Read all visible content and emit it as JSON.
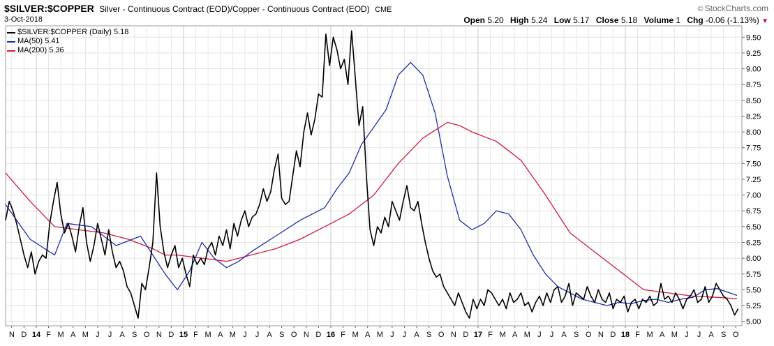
{
  "header": {
    "symbol": "$SILVER:$COPPER",
    "description": "Silver - Continuous Contract (EOD)/Copper - Continuous Contract (EOD)",
    "exchange": "CME",
    "brand": "StockCharts.com",
    "date": "3-Oct-2018",
    "open_label": "Open",
    "open": "5.20",
    "high_label": "High",
    "high": "5.24",
    "low_label": "Low",
    "low": "5.17",
    "close_label": "Close",
    "close": "5.18",
    "volume_label": "Volume",
    "volume": "1",
    "chg_label": "Chg",
    "chg": "-0.06 (-1.13%)"
  },
  "legend": [
    {
      "text": "$SILVER:$COPPER (Daily) 5.18",
      "color": "#000000"
    },
    {
      "text": "MA(50) 5.41",
      "color": "#1c2ea8"
    },
    {
      "text": "MA(200) 5.36",
      "color": "#d11a3c"
    }
  ],
  "chart_data": {
    "type": "line",
    "y_axis_position": "right",
    "ylim": [
      4.93,
      9.68
    ],
    "y_ticks": [
      "5.00",
      "5.25",
      "5.50",
      "5.75",
      "6.00",
      "6.25",
      "6.50",
      "6.75",
      "7.00",
      "7.25",
      "7.50",
      "7.75",
      "8.00",
      "8.25",
      "8.50",
      "8.75",
      "9.00",
      "9.25",
      "9.50"
    ],
    "x_ticks": [
      "N",
      "D",
      "14",
      "F",
      "M",
      "A",
      "M",
      "J",
      "J",
      "A",
      "S",
      "O",
      "N",
      "D",
      "15",
      "F",
      "M",
      "A",
      "M",
      "J",
      "J",
      "A",
      "S",
      "O",
      "N",
      "D",
      "16",
      "F",
      "M",
      "A",
      "M",
      "J",
      "J",
      "A",
      "S",
      "O",
      "N",
      "D",
      "17",
      "F",
      "M",
      "A",
      "M",
      "J",
      "J",
      "A",
      "S",
      "O",
      "N",
      "D",
      "18",
      "F",
      "M",
      "A",
      "M",
      "J",
      "J",
      "A",
      "S",
      "O"
    ],
    "year_ticks": [
      "14",
      "15",
      "16",
      "17",
      "18"
    ],
    "x_range_months": [
      0,
      60
    ],
    "series": [
      {
        "name": "$SILVER:$COPPER (Daily)",
        "color": "#000000",
        "x": [
          0.0,
          0.3,
          0.6,
          0.9,
          1.2,
          1.5,
          1.8,
          2.1,
          2.4,
          2.7,
          3.0,
          3.3,
          3.6,
          3.9,
          4.2,
          4.5,
          4.8,
          5.1,
          5.4,
          5.7,
          6.0,
          6.3,
          6.6,
          6.9,
          7.2,
          7.5,
          7.8,
          8.1,
          8.4,
          8.7,
          9.0,
          9.3,
          9.6,
          9.9,
          10.2,
          10.5,
          10.8,
          11.1,
          11.4,
          11.7,
          12.0,
          12.3,
          12.6,
          12.9,
          13.2,
          13.5,
          13.8,
          14.1,
          14.4,
          14.7,
          15.0,
          15.3,
          15.6,
          15.9,
          16.2,
          16.5,
          16.8,
          17.1,
          17.4,
          17.7,
          18.0,
          18.3,
          18.6,
          18.9,
          19.2,
          19.5,
          19.8,
          20.1,
          20.4,
          20.7,
          21.0,
          21.3,
          21.6,
          21.9,
          22.2,
          22.5,
          22.8,
          23.1,
          23.4,
          23.7,
          24.0,
          24.3,
          24.6,
          24.9,
          25.2,
          25.5,
          25.8,
          26.1,
          26.4,
          26.7,
          27.0,
          27.3,
          27.6,
          27.9,
          28.2,
          28.5,
          28.8,
          29.1,
          29.4,
          29.7,
          30.0,
          30.3,
          30.6,
          30.9,
          31.2,
          31.5,
          31.8,
          32.1,
          32.4,
          32.7,
          33.0,
          33.3,
          33.6,
          33.9,
          34.2,
          34.5,
          34.8,
          35.1,
          35.4,
          35.7,
          36.0,
          36.3,
          36.6,
          36.9,
          37.2,
          37.5,
          37.8,
          38.1,
          38.4,
          38.7,
          39.0,
          39.3,
          39.6,
          39.9,
          40.2,
          40.5,
          40.8,
          41.1,
          41.4,
          41.7,
          42.0,
          42.3,
          42.6,
          42.9,
          43.2,
          43.5,
          43.8,
          44.1,
          44.4,
          44.7,
          45.0,
          45.3,
          45.6,
          45.9,
          46.2,
          46.5,
          46.8,
          47.1,
          47.4,
          47.7,
          48.0,
          48.3,
          48.6,
          48.9,
          49.2,
          49.5,
          49.8,
          50.1,
          50.4,
          50.7,
          51.0,
          51.3,
          51.6,
          51.9,
          52.2,
          52.5,
          52.8,
          53.1,
          53.4,
          53.7,
          54.0,
          54.3,
          54.6,
          54.9,
          55.2,
          55.5,
          55.8,
          56.1,
          56.4,
          56.7,
          57.0,
          57.3,
          57.6,
          57.9,
          58.2,
          58.5,
          58.8,
          59.1,
          59.4,
          59.7
        ],
        "values": [
          6.6,
          6.9,
          6.75,
          6.55,
          6.3,
          6.05,
          5.85,
          6.1,
          5.75,
          5.95,
          6.05,
          6.0,
          6.55,
          6.9,
          7.2,
          6.7,
          6.4,
          6.55,
          6.35,
          6.1,
          6.5,
          6.8,
          6.25,
          5.95,
          6.2,
          6.55,
          6.3,
          6.05,
          6.45,
          6.1,
          5.85,
          5.95,
          5.8,
          5.55,
          5.45,
          5.25,
          5.05,
          5.6,
          5.5,
          5.85,
          6.25,
          7.35,
          6.5,
          6.1,
          5.85,
          6.05,
          6.2,
          5.85,
          6.0,
          5.75,
          5.55,
          6.05,
          5.9,
          6.0,
          5.9,
          6.15,
          6.25,
          6.05,
          6.35,
          6.2,
          6.45,
          6.15,
          6.55,
          6.35,
          6.6,
          6.75,
          6.5,
          6.65,
          6.7,
          6.85,
          7.1,
          6.9,
          7.05,
          7.4,
          7.65,
          6.95,
          6.85,
          6.9,
          7.3,
          7.7,
          7.45,
          8.0,
          8.3,
          7.95,
          8.2,
          8.6,
          8.55,
          9.55,
          9.05,
          9.5,
          9.3,
          9.0,
          9.15,
          8.75,
          9.6,
          8.85,
          8.1,
          8.4,
          7.3,
          6.45,
          6.2,
          6.5,
          6.4,
          6.65,
          6.5,
          6.9,
          6.75,
          6.6,
          6.9,
          7.15,
          6.8,
          6.75,
          6.9,
          6.55,
          6.25,
          6.0,
          5.8,
          5.7,
          5.75,
          5.55,
          5.45,
          5.35,
          5.25,
          5.45,
          5.3,
          5.15,
          5.05,
          5.35,
          5.2,
          5.35,
          5.25,
          5.5,
          5.45,
          5.35,
          5.25,
          5.35,
          5.2,
          5.45,
          5.3,
          5.35,
          5.45,
          5.25,
          5.3,
          5.15,
          5.3,
          5.4,
          5.25,
          5.45,
          5.3,
          5.5,
          5.55,
          5.3,
          5.4,
          5.6,
          5.25,
          5.45,
          5.4,
          5.35,
          5.55,
          5.4,
          5.3,
          5.5,
          5.35,
          5.3,
          5.45,
          5.2,
          5.35,
          5.3,
          5.4,
          5.15,
          5.3,
          5.35,
          5.2,
          5.35,
          5.3,
          5.4,
          5.25,
          5.3,
          5.6,
          5.35,
          5.4,
          5.3,
          5.45,
          5.35,
          5.2,
          5.35,
          5.4,
          5.5,
          5.3,
          5.35,
          5.55,
          5.3,
          5.4,
          5.6,
          5.5,
          5.4,
          5.35,
          5.25,
          5.1,
          5.2
        ]
      },
      {
        "name": "MA(50)",
        "color": "#1c2ea8",
        "x": [
          0,
          2,
          4,
          5,
          7,
          9,
          11,
          13,
          14,
          15,
          16,
          17,
          18,
          19,
          20,
          22,
          24,
          26,
          27,
          28,
          29,
          31,
          32,
          33,
          34,
          35,
          36,
          37,
          38,
          39,
          40,
          41,
          42,
          43,
          44,
          45,
          46,
          47,
          48,
          49,
          50,
          51,
          52,
          53,
          54,
          55,
          56,
          57,
          58,
          59.6
        ],
        "values": [
          6.85,
          6.3,
          6.05,
          6.55,
          6.5,
          6.2,
          6.35,
          5.75,
          5.5,
          5.8,
          6.25,
          6.0,
          5.85,
          5.95,
          6.1,
          6.35,
          6.6,
          6.8,
          7.1,
          7.35,
          7.8,
          8.35,
          8.9,
          9.1,
          8.9,
          8.3,
          7.3,
          6.6,
          6.45,
          6.55,
          6.75,
          6.7,
          6.45,
          6.05,
          5.75,
          5.55,
          5.45,
          5.35,
          5.3,
          5.25,
          5.3,
          5.28,
          5.33,
          5.35,
          5.3,
          5.35,
          5.38,
          5.5,
          5.52,
          5.41
        ]
      },
      {
        "name": "MA(200)",
        "color": "#d11a3c",
        "x": [
          0,
          2,
          4,
          6,
          8,
          10,
          12,
          13,
          14,
          16,
          18,
          20,
          22,
          24,
          26,
          28,
          30,
          32,
          34,
          36,
          37,
          38,
          40,
          42,
          44,
          46,
          48,
          50,
          52,
          54,
          56,
          58,
          59.6
        ],
        "values": [
          7.35,
          6.9,
          6.5,
          6.45,
          6.4,
          6.3,
          6.15,
          6.05,
          6.05,
          6.0,
          5.95,
          6.05,
          6.15,
          6.3,
          6.5,
          6.7,
          7.0,
          7.5,
          7.9,
          8.15,
          8.1,
          8.0,
          7.85,
          7.55,
          7.0,
          6.4,
          6.1,
          5.8,
          5.5,
          5.45,
          5.4,
          5.38,
          5.36
        ]
      }
    ]
  }
}
